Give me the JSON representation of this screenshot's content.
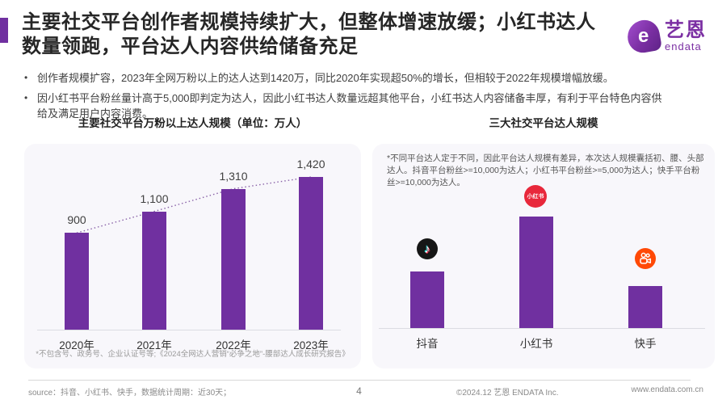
{
  "header": {
    "title_lines": [
      "主要社交平台创作者规模持续扩大，但整体增速放缓；小红书达人",
      "数量领跑，平台达人内容供给储备充足"
    ],
    "logo": {
      "mark": "e",
      "name_cn": "艺恩",
      "name_en": "endata"
    }
  },
  "bullets": [
    "创作者规模扩容，2023年全网万粉以上的达人达到1420万，同比2020年实现超50%的增长，但相较于2022年规模增幅放缓。",
    "因小红书平台粉丝量计高于5,000即判定为达人，因此小红书达人数量远超其他平台，小红书达人内容储备丰厚，有利于平台特色内容供给及满足用户内容消费。"
  ],
  "chart_data": [
    {
      "type": "bar",
      "title": "主要社交平台万粉以上达人规模（单位：万人）",
      "categories": [
        "2020年",
        "2021年",
        "2022年",
        "2023年"
      ],
      "values": [
        900,
        1100,
        1310,
        1420
      ],
      "value_labels": [
        "900",
        "1,100",
        "1,310",
        "1,420"
      ],
      "xlabel": "",
      "ylabel": "万人",
      "ylim": [
        0,
        1730
      ],
      "grid": false,
      "legend": "none",
      "bar_color": "#7030A0",
      "trendline": "dotted line through bar tops",
      "footnote": "*不包含号、政务号、企业认证号等;《2024全网达人营销“必争之地”-腰部达人成长研究报告》"
    },
    {
      "type": "bar",
      "title": "三大社交平台达人规模",
      "categories": [
        "抖音",
        "小红书",
        "快手"
      ],
      "relative_values": [
        100,
        197,
        74
      ],
      "value_axis": "unlabeled (relative scale, no numeric ticks shown)",
      "grid": false,
      "legend": "none",
      "bar_color": "#7030A0",
      "icons": [
        "douyin-icon",
        "xiaohongshu-icon",
        "kuaishou-icon"
      ],
      "icon_colors": {
        "douyin": "#161616",
        "xiaohongshu": "#E8283B",
        "kuaishou": "#FF4906"
      },
      "xiaohongshu_badge_text": "小红书",
      "douyin_glyph": "♪",
      "note": "*不同平台达人定于不同，因此平台达人规模有差异，本次达人规模囊括初、腰、头部达人。抖音平台粉丝>=10,000为达人；小红书平台粉丝>=5,000为达人；快手平台粉丝>=10,000为达人。"
    }
  ],
  "footer": {
    "source": "source：抖音、小红书、快手，数据统计周期：近30天；",
    "page_number": "4",
    "copyright": "©2024.12 艺恩 ENDATA Inc.",
    "website": "www.endata.com.cn"
  },
  "colors": {
    "accent": "#7030A0",
    "bar": "#7030A0",
    "card_bg": "#F8F7FB"
  }
}
